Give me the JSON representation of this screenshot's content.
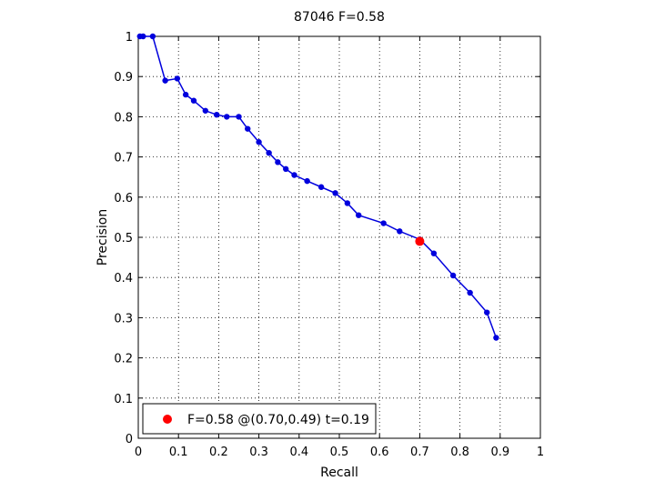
{
  "chart_data": {
    "type": "line",
    "title": "87046 F=0.58",
    "xlabel": "Recall",
    "ylabel": "Precision",
    "xlim": [
      0,
      1
    ],
    "ylim": [
      0,
      1
    ],
    "grid": true,
    "legend_position": "bottom-left",
    "x_ticks": [
      "0",
      "0.1",
      "0.2",
      "0.3",
      "0.4",
      "0.5",
      "0.6",
      "0.7",
      "0.8",
      "0.9",
      "1"
    ],
    "y_ticks": [
      "0",
      "0.1",
      "0.2",
      "0.3",
      "0.4",
      "0.5",
      "0.6",
      "0.7",
      "0.8",
      "0.9",
      "1"
    ],
    "series": [
      {
        "color": "#0000dd",
        "x": [
          0.004,
          0.012,
          0.036,
          0.067,
          0.097,
          0.118,
          0.138,
          0.167,
          0.195,
          0.22,
          0.25,
          0.272,
          0.3,
          0.325,
          0.347,
          0.367,
          0.388,
          0.42,
          0.455,
          0.49,
          0.52,
          0.548,
          0.61,
          0.65,
          0.7,
          0.735,
          0.783,
          0.825,
          0.867,
          0.89
        ],
        "y": [
          1.0,
          1.0,
          1.0,
          0.89,
          0.895,
          0.855,
          0.84,
          0.815,
          0.805,
          0.8,
          0.8,
          0.77,
          0.737,
          0.71,
          0.687,
          0.67,
          0.655,
          0.64,
          0.625,
          0.61,
          0.585,
          0.555,
          0.535,
          0.515,
          0.495,
          0.46,
          0.405,
          0.362,
          0.313,
          0.25
        ]
      }
    ],
    "highlight_point": {
      "x": 0.7,
      "y": 0.49,
      "color": "#ff0000",
      "label": "F=0.58 @(0.70,0.49) t=0.19"
    }
  }
}
